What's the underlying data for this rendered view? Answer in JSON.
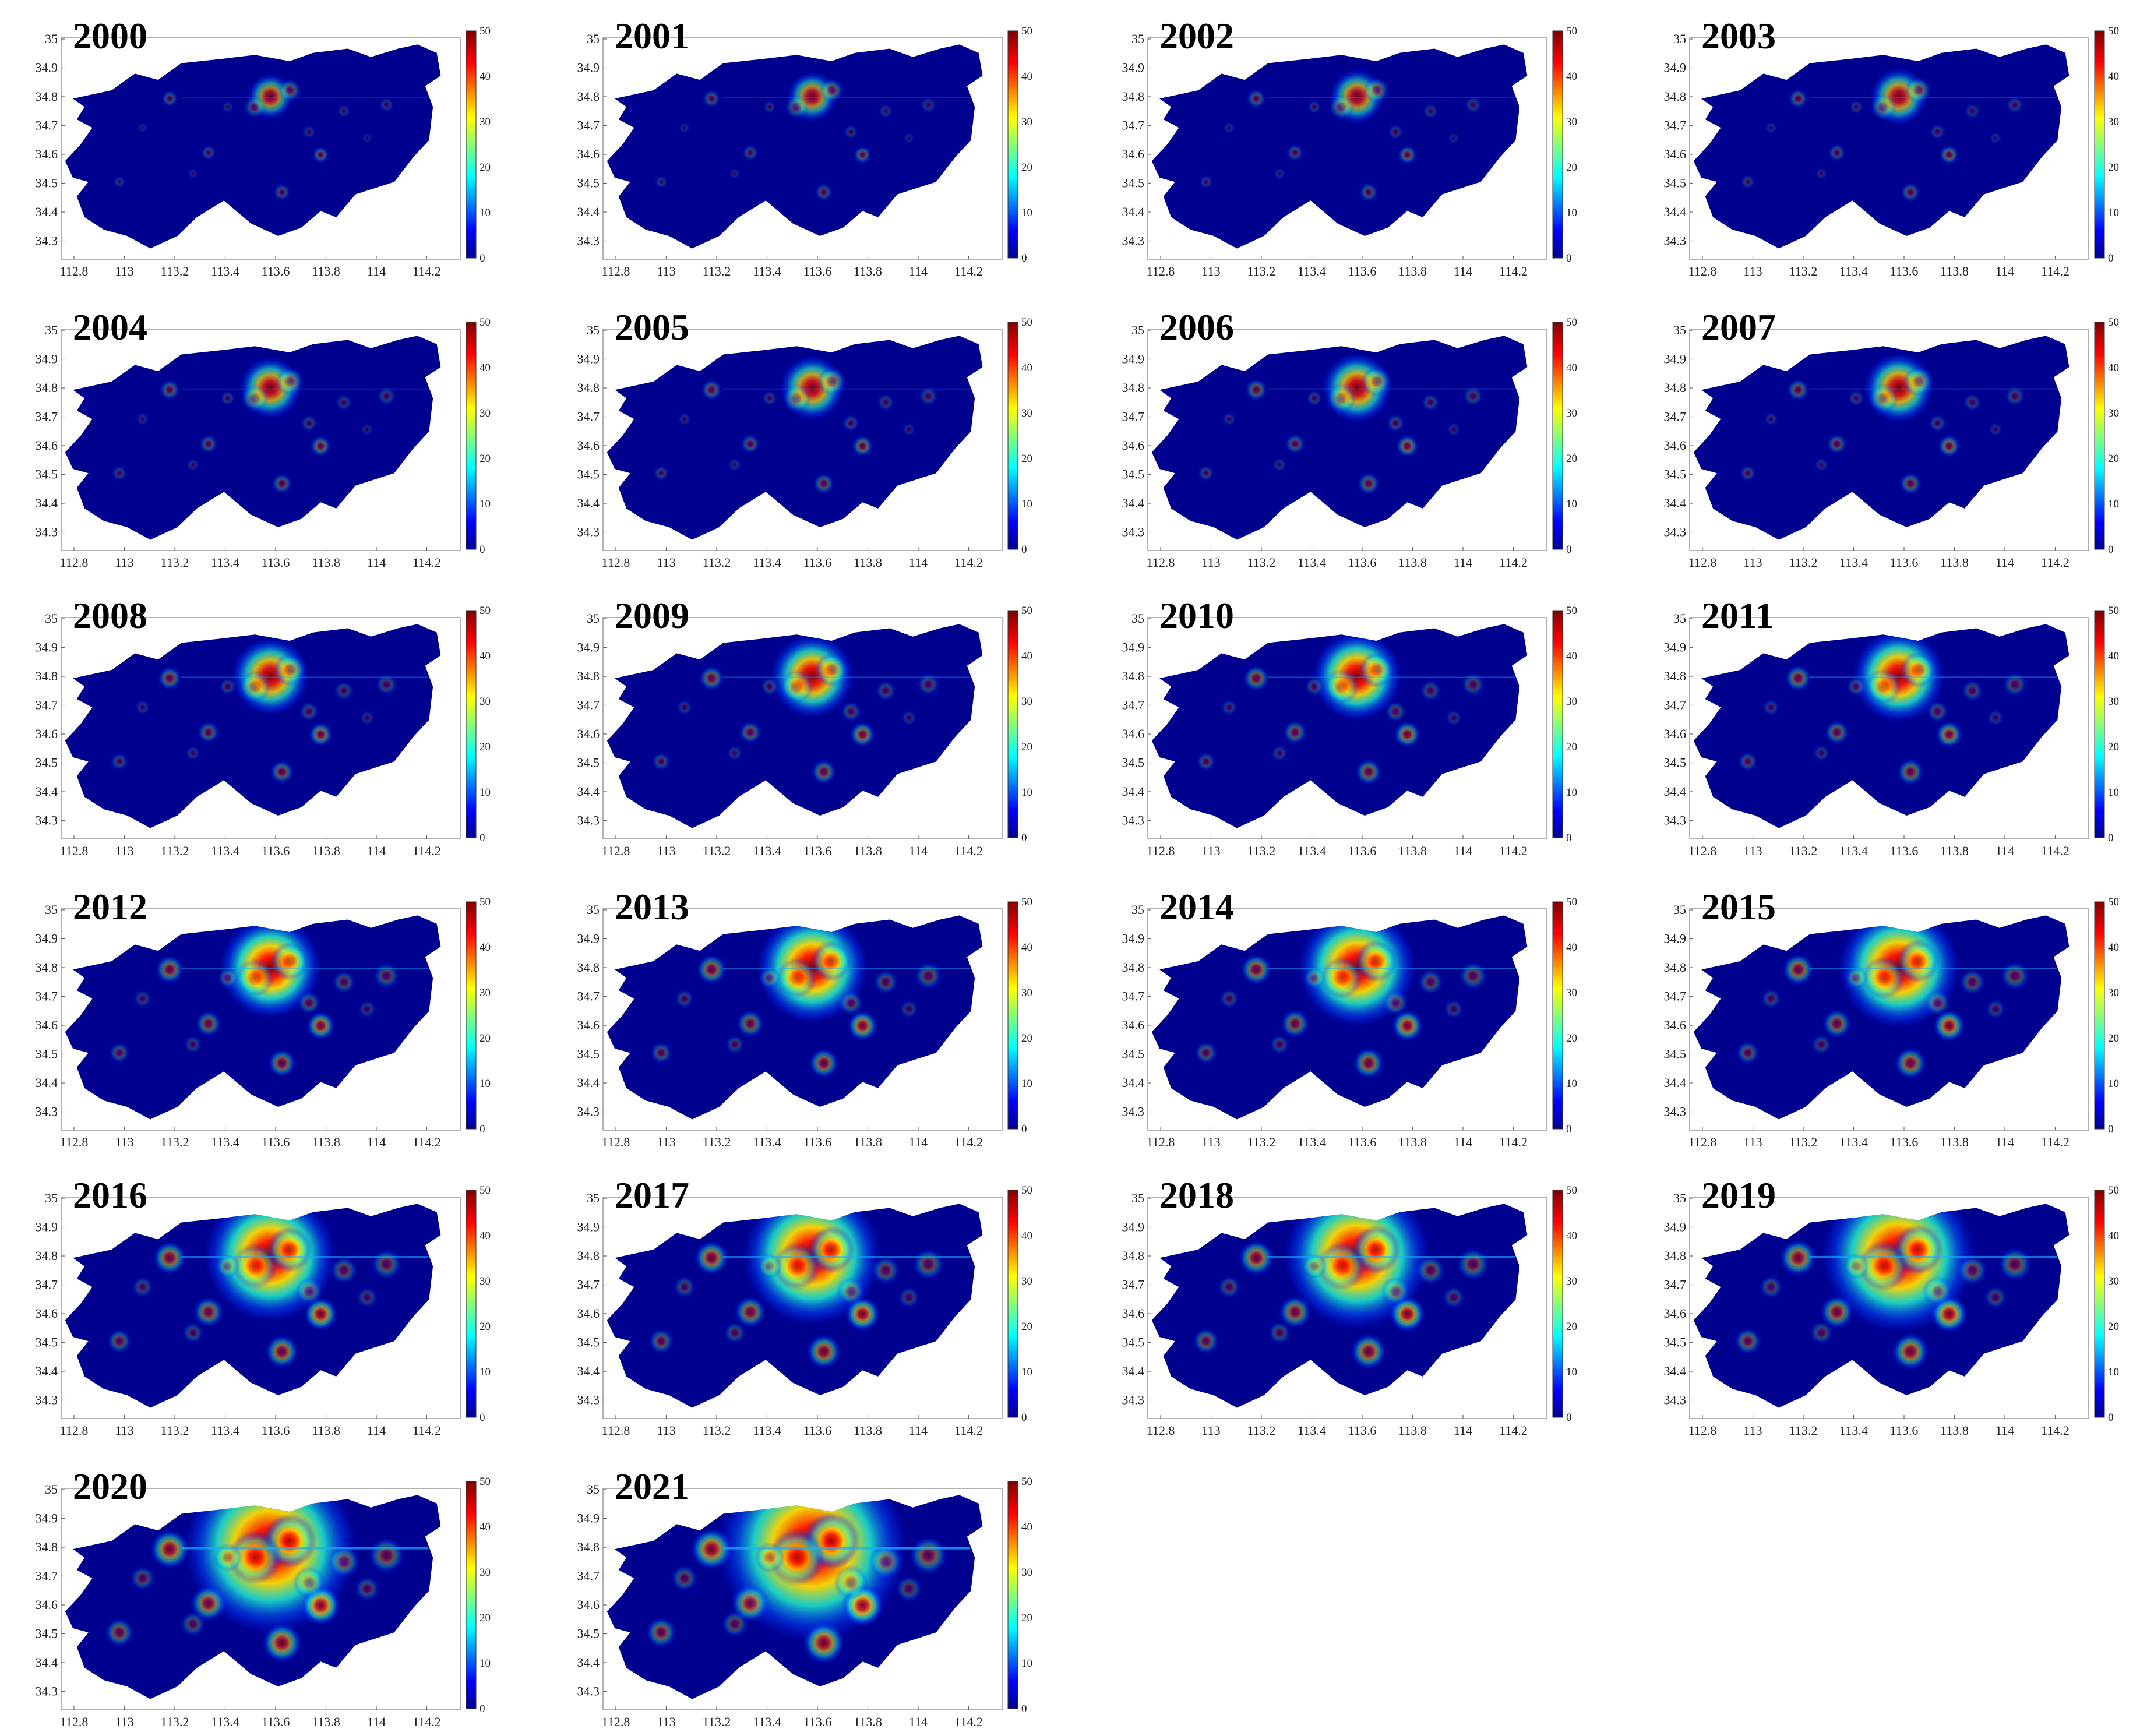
{
  "figure": {
    "panels": [
      {
        "year": "2000",
        "intensity": 0.1
      },
      {
        "year": "2001",
        "intensity": 0.14
      },
      {
        "year": "2002",
        "intensity": 0.18
      },
      {
        "year": "2003",
        "intensity": 0.2
      },
      {
        "year": "2004",
        "intensity": 0.24
      },
      {
        "year": "2005",
        "intensity": 0.26
      },
      {
        "year": "2006",
        "intensity": 0.3
      },
      {
        "year": "2007",
        "intensity": 0.3
      },
      {
        "year": "2008",
        "intensity": 0.36
      },
      {
        "year": "2009",
        "intensity": 0.4
      },
      {
        "year": "2010",
        "intensity": 0.44
      },
      {
        "year": "2011",
        "intensity": 0.46
      },
      {
        "year": "2012",
        "intensity": 0.52
      },
      {
        "year": "2013",
        "intensity": 0.58
      },
      {
        "year": "2014",
        "intensity": 0.62
      },
      {
        "year": "2015",
        "intensity": 0.64
      },
      {
        "year": "2016",
        "intensity": 0.7
      },
      {
        "year": "2017",
        "intensity": 0.74
      },
      {
        "year": "2018",
        "intensity": 0.78
      },
      {
        "year": "2019",
        "intensity": 0.82
      },
      {
        "year": "2020",
        "intensity": 0.92
      },
      {
        "year": "2021",
        "intensity": 1.0
      }
    ],
    "x_ticks": [
      "112.8",
      "113",
      "113.2",
      "113.4",
      "113.6",
      "113.8",
      "114",
      "114.2"
    ],
    "y_ticks": [
      "35",
      "34.9",
      "34.8",
      "34.7",
      "34.6",
      "34.5",
      "34.4",
      "34.3"
    ],
    "colorbar_ticks": [
      "50",
      "40",
      "30",
      "20",
      "10",
      "0"
    ],
    "colors": {
      "background": "#00008f",
      "low": "#0020ff",
      "mid": "#00ffff",
      "high": "#ffff00",
      "peak": "#b00000"
    }
  }
}
